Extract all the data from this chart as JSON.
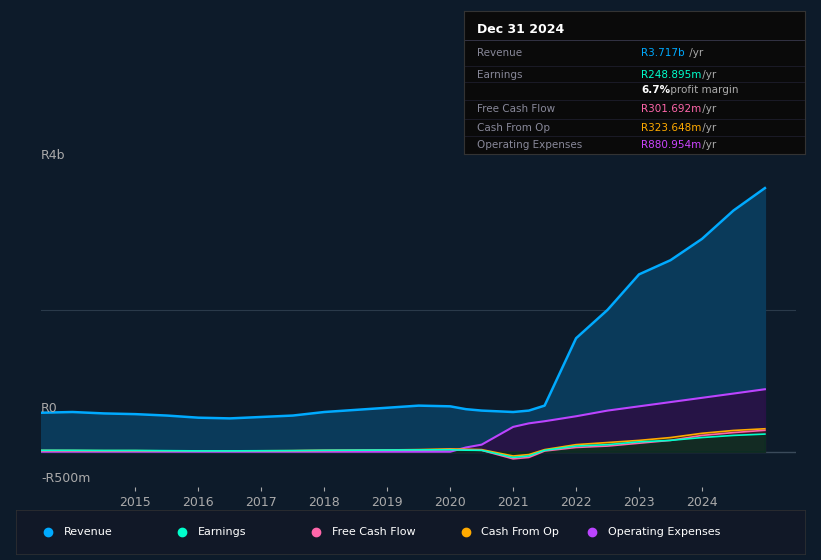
{
  "background_color": "#0d1b2a",
  "plot_bg_color": "#0d1b2a",
  "y_label_top": "R4b",
  "y_label_mid": "R0",
  "y_label_bot": "-R500m",
  "ylim": [
    -500,
    4000
  ],
  "xlim": [
    2013.5,
    2025.5
  ],
  "xticks": [
    2015,
    2016,
    2017,
    2018,
    2019,
    2020,
    2021,
    2022,
    2023,
    2024
  ],
  "gridline_y": 2000,
  "info_box": {
    "title": "Dec 31 2024",
    "rows": [
      {
        "label": "Revenue",
        "value": "R3.717b",
        "suffix": " /yr",
        "value_color": "#00aaff",
        "bold": false
      },
      {
        "label": "Earnings",
        "value": "R248.895m",
        "suffix": " /yr",
        "value_color": "#00ffcc",
        "bold": false
      },
      {
        "label": "",
        "value": "6.7%",
        "suffix": " profit margin",
        "value_color": "#ffffff",
        "bold": true
      },
      {
        "label": "Free Cash Flow",
        "value": "R301.692m",
        "suffix": " /yr",
        "value_color": "#ff66aa",
        "bold": false
      },
      {
        "label": "Cash From Op",
        "value": "R323.648m",
        "suffix": " /yr",
        "value_color": "#ffaa00",
        "bold": false
      },
      {
        "label": "Operating Expenses",
        "value": "R880.954m",
        "suffix": " /yr",
        "value_color": "#cc44ff",
        "bold": false
      }
    ]
  },
  "series": {
    "years": [
      2013.5,
      2014,
      2014.5,
      2015,
      2015.5,
      2016,
      2016.5,
      2017,
      2017.5,
      2018,
      2018.5,
      2019,
      2019.5,
      2020,
      2020.25,
      2020.5,
      2021,
      2021.25,
      2021.5,
      2022,
      2022.5,
      2023,
      2023.5,
      2024,
      2024.5,
      2025.0
    ],
    "revenue": [
      550,
      560,
      540,
      530,
      510,
      480,
      470,
      490,
      510,
      560,
      590,
      620,
      650,
      640,
      600,
      580,
      560,
      580,
      650,
      1600,
      2000,
      2500,
      2700,
      3000,
      3400,
      3717
    ],
    "earnings": [
      20,
      20,
      18,
      18,
      15,
      12,
      12,
      14,
      16,
      20,
      22,
      24,
      26,
      28,
      22,
      20,
      -80,
      -60,
      20,
      80,
      100,
      140,
      160,
      200,
      230,
      249
    ],
    "free_cash": [
      15,
      14,
      12,
      13,
      10,
      8,
      9,
      11,
      13,
      16,
      18,
      20,
      22,
      30,
      25,
      20,
      -100,
      -80,
      10,
      60,
      80,
      120,
      160,
      230,
      270,
      302
    ],
    "cash_from_op": [
      18,
      17,
      15,
      15,
      12,
      10,
      11,
      13,
      15,
      20,
      22,
      25,
      30,
      40,
      35,
      30,
      -60,
      -40,
      30,
      100,
      130,
      160,
      200,
      260,
      300,
      324
    ],
    "op_expenses": [
      0,
      0,
      0,
      0,
      0,
      0,
      0,
      0,
      0,
      0,
      0,
      0,
      0,
      0,
      60,
      100,
      350,
      400,
      430,
      500,
      580,
      640,
      700,
      760,
      820,
      881
    ]
  },
  "series_colors": {
    "revenue_line": "#00aaff",
    "revenue_fill": "#0a3a5a",
    "earnings_line": "#00ffcc",
    "earnings_fill": "#003322",
    "free_cash_line": "#ff66aa",
    "free_cash_fill": "#441133",
    "cash_from_op_line": "#ffaa00",
    "cash_from_op_fill": "#443300",
    "op_expenses_line": "#bb44ff",
    "op_expenses_fill": "#2a1044"
  },
  "legend_items": [
    {
      "label": "Revenue",
      "color": "#00aaff"
    },
    {
      "label": "Earnings",
      "color": "#00ffcc"
    },
    {
      "label": "Free Cash Flow",
      "color": "#ff66aa"
    },
    {
      "label": "Cash From Op",
      "color": "#ffaa00"
    },
    {
      "label": "Operating Expenses",
      "color": "#bb44ff"
    }
  ]
}
